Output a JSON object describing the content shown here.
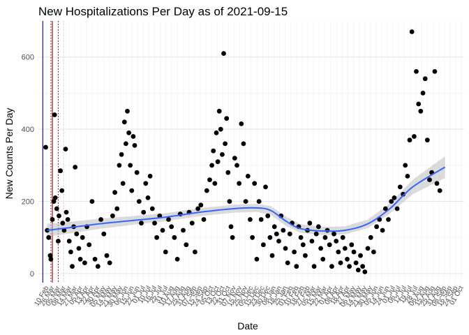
{
  "chart_data": {
    "type": "scatter",
    "title": "New Hospitalizations Per Day as of 2021-09-15",
    "xlabel": "Date",
    "ylabel": "New Counts Per Day",
    "ylim": [
      -25,
      700
    ],
    "yticks": [
      0,
      200,
      400,
      600
    ],
    "xlim": [
      "2020-03-10",
      "2021-10-10"
    ],
    "xtick_labels": [
      "10 Feb",
      "26 Mar",
      "05 Mar",
      "08 Mar",
      "14 Mar",
      "27 Mar",
      "05 Apr",
      "13 Apr",
      "22 Apr",
      "30 Apr",
      "05 May",
      "14 May",
      "21 May",
      "30 May",
      "06 Jun",
      "15 Jun",
      "22 Jun",
      "01 Jul",
      "10 Jul",
      "16 Jul",
      "25 Jul",
      "31 Jul",
      "10 Aug",
      "17 Aug",
      "25 Aug",
      "31 Aug",
      "07 Sep",
      "15 Sep",
      "24 Sep",
      "05 Oct",
      "13 Oct",
      "22 Oct",
      "31 Oct",
      "07 Nov",
      "15 Nov",
      "25 Nov",
      "05 Dec",
      "15 Dec",
      "23 Dec",
      "30 Dec",
      "08 Jan",
      "18 Jan",
      "25 Jan",
      "01 Feb",
      "10 Feb",
      "18 Feb",
      "27 Feb",
      "05 Mar",
      "15 Mar",
      "22 Mar",
      "01 Apr",
      "08 Apr",
      "18 Apr",
      "27 Apr",
      "06 May",
      "14 May",
      "21 May",
      "30 May",
      "05 Jun",
      "14 Jun",
      "24 Jun",
      "01 Jul",
      "06 Jul",
      "12 Jul",
      "19 Jul",
      "28 Jul",
      "06 Aug",
      "15 Aug",
      "25 Aug",
      "31 Aug",
      "08 Sep",
      "16 Sep",
      "24 Sep",
      "01 Oct"
    ],
    "grid": true,
    "reference_lines": [
      {
        "date": "2020-03-16",
        "color": "#00008b",
        "style": "solid"
      },
      {
        "date": "2020-03-29",
        "color": "#8b0000",
        "style": "solid"
      },
      {
        "date": "2020-03-27",
        "color": "#8b0000",
        "style": "dotted"
      },
      {
        "date": "2020-04-06",
        "color": "#8b0000",
        "style": "dotted"
      },
      {
        "date": "2020-04-13",
        "color": "#ffb6c1",
        "style": "dotted"
      }
    ],
    "trend_color": "#3366ff",
    "band_color": "#bdbdbd",
    "point_color": "#000000",
    "trend": [
      [
        "2020-03-22",
        120
      ],
      [
        "2020-04-20",
        127
      ],
      [
        "2020-06-01",
        138
      ],
      [
        "2020-07-15",
        147
      ],
      [
        "2020-09-01",
        157
      ],
      [
        "2020-10-15",
        170
      ],
      [
        "2020-12-01",
        180
      ],
      [
        "2021-01-01",
        182
      ],
      [
        "2021-01-20",
        175
      ],
      [
        "2021-02-10",
        145
      ],
      [
        "2021-03-01",
        125
      ],
      [
        "2021-04-01",
        118
      ],
      [
        "2021-05-01",
        120
      ],
      [
        "2021-06-01",
        138
      ],
      [
        "2021-07-01",
        180
      ],
      [
        "2021-08-01",
        240
      ],
      [
        "2021-09-14",
        295
      ]
    ],
    "band_halfwidth": [
      [
        0,
        18
      ],
      [
        1,
        16
      ],
      [
        2,
        14
      ],
      [
        3,
        12
      ],
      [
        4,
        11
      ],
      [
        5,
        11
      ],
      [
        6,
        11
      ],
      [
        7,
        11
      ],
      [
        8,
        12
      ],
      [
        9,
        13
      ],
      [
        10,
        12
      ],
      [
        11,
        11
      ],
      [
        12,
        11
      ],
      [
        13,
        12
      ],
      [
        14,
        14
      ],
      [
        15,
        20
      ],
      [
        16,
        30
      ]
    ],
    "series": [
      {
        "points": [
          [
            "2020-03-20",
            350
          ],
          [
            "2020-03-22",
            120
          ],
          [
            "2020-03-24",
            100
          ],
          [
            "2020-03-26",
            50
          ],
          [
            "2020-03-27",
            40
          ],
          [
            "2020-03-29",
            150
          ],
          [
            "2020-03-31",
            200
          ],
          [
            "2020-04-01",
            440
          ],
          [
            "2020-04-02",
            210
          ],
          [
            "2020-04-04",
            180
          ],
          [
            "2020-04-06",
            90
          ],
          [
            "2020-04-07",
            160
          ],
          [
            "2020-04-09",
            285
          ],
          [
            "2020-04-11",
            230
          ],
          [
            "2020-04-12",
            140
          ],
          [
            "2020-04-14",
            120
          ],
          [
            "2020-04-16",
            345
          ],
          [
            "2020-04-17",
            170
          ],
          [
            "2020-04-19",
            150
          ],
          [
            "2020-04-21",
            90
          ],
          [
            "2020-04-23",
            60
          ],
          [
            "2020-04-25",
            20
          ],
          [
            "2020-04-27",
            130
          ],
          [
            "2020-04-29",
            295
          ],
          [
            "2020-05-01",
            110
          ],
          [
            "2020-05-04",
            70
          ],
          [
            "2020-05-06",
            40
          ],
          [
            "2020-05-09",
            100
          ],
          [
            "2020-05-12",
            30
          ],
          [
            "2020-05-15",
            130
          ],
          [
            "2020-05-18",
            80
          ],
          [
            "2020-05-22",
            200
          ],
          [
            "2020-05-26",
            40
          ],
          [
            "2020-05-30",
            20
          ],
          [
            "2020-06-03",
            150
          ],
          [
            "2020-06-07",
            110
          ],
          [
            "2020-06-11",
            50
          ],
          [
            "2020-06-15",
            30
          ],
          [
            "2020-06-19",
            160
          ],
          [
            "2020-06-22",
            225
          ],
          [
            "2020-06-25",
            180
          ],
          [
            "2020-06-28",
            300
          ],
          [
            "2020-07-01",
            330
          ],
          [
            "2020-07-03",
            250
          ],
          [
            "2020-07-05",
            420
          ],
          [
            "2020-07-07",
            360
          ],
          [
            "2020-07-09",
            450
          ],
          [
            "2020-07-11",
            390
          ],
          [
            "2020-07-13",
            300
          ],
          [
            "2020-07-15",
            230
          ],
          [
            "2020-07-17",
            380
          ],
          [
            "2020-07-19",
            355
          ],
          [
            "2020-07-22",
            280
          ],
          [
            "2020-07-25",
            200
          ],
          [
            "2020-07-28",
            140
          ],
          [
            "2020-07-31",
            170
          ],
          [
            "2020-08-03",
            250
          ],
          [
            "2020-08-06",
            210
          ],
          [
            "2020-08-09",
            270
          ],
          [
            "2020-08-12",
            180
          ],
          [
            "2020-08-15",
            140
          ],
          [
            "2020-08-18",
            100
          ],
          [
            "2020-08-22",
            160
          ],
          [
            "2020-08-26",
            120
          ],
          [
            "2020-08-30",
            60
          ],
          [
            "2020-09-03",
            150
          ],
          [
            "2020-09-07",
            130
          ],
          [
            "2020-09-11",
            100
          ],
          [
            "2020-09-15",
            40
          ],
          [
            "2020-09-19",
            165
          ],
          [
            "2020-09-23",
            120
          ],
          [
            "2020-09-27",
            80
          ],
          [
            "2020-10-01",
            170
          ],
          [
            "2020-10-05",
            140
          ],
          [
            "2020-10-09",
            60
          ],
          [
            "2020-10-13",
            180
          ],
          [
            "2020-10-17",
            190
          ],
          [
            "2020-10-21",
            150
          ],
          [
            "2020-10-25",
            230
          ],
          [
            "2020-10-29",
            260
          ],
          [
            "2020-11-01",
            300
          ],
          [
            "2020-11-03",
            340
          ],
          [
            "2020-11-05",
            250
          ],
          [
            "2020-11-07",
            390
          ],
          [
            "2020-11-09",
            310
          ],
          [
            "2020-11-11",
            450
          ],
          [
            "2020-11-13",
            400
          ],
          [
            "2020-11-15",
            330
          ],
          [
            "2020-11-17",
            610
          ],
          [
            "2020-11-19",
            360
          ],
          [
            "2020-11-21",
            430
          ],
          [
            "2020-11-23",
            280
          ],
          [
            "2020-11-25",
            200
          ],
          [
            "2020-11-27",
            130
          ],
          [
            "2020-11-29",
            100
          ],
          [
            "2020-12-02",
            320
          ],
          [
            "2020-12-05",
            300
          ],
          [
            "2020-12-08",
            250
          ],
          [
            "2020-12-11",
            415
          ],
          [
            "2020-12-14",
            360
          ],
          [
            "2020-12-17",
            200
          ],
          [
            "2020-12-20",
            270
          ],
          [
            "2020-12-23",
            150
          ],
          [
            "2020-12-26",
            100
          ],
          [
            "2020-12-29",
            250
          ],
          [
            "2021-01-01",
            40
          ],
          [
            "2021-01-04",
            200
          ],
          [
            "2021-01-07",
            150
          ],
          [
            "2021-01-10",
            80
          ],
          [
            "2021-01-13",
            240
          ],
          [
            "2021-01-16",
            160
          ],
          [
            "2021-01-19",
            100
          ],
          [
            "2021-01-22",
            50
          ],
          [
            "2021-01-25",
            130
          ],
          [
            "2021-01-28",
            110
          ],
          [
            "2021-01-31",
            90
          ],
          [
            "2021-02-03",
            160
          ],
          [
            "2021-02-06",
            120
          ],
          [
            "2021-02-09",
            70
          ],
          [
            "2021-02-12",
            30
          ],
          [
            "2021-02-15",
            110
          ],
          [
            "2021-02-18",
            140
          ],
          [
            "2021-02-21",
            60
          ],
          [
            "2021-02-24",
            20
          ],
          [
            "2021-02-27",
            130
          ],
          [
            "2021-03-02",
            100
          ],
          [
            "2021-03-05",
            80
          ],
          [
            "2021-03-08",
            50
          ],
          [
            "2021-03-11",
            120
          ],
          [
            "2021-03-14",
            140
          ],
          [
            "2021-03-17",
            90
          ],
          [
            "2021-03-20",
            20
          ],
          [
            "2021-03-23",
            110
          ],
          [
            "2021-03-26",
            130
          ],
          [
            "2021-03-29",
            70
          ],
          [
            "2021-04-01",
            40
          ],
          [
            "2021-04-04",
            100
          ],
          [
            "2021-04-07",
            120
          ],
          [
            "2021-04-10",
            80
          ],
          [
            "2021-04-13",
            20
          ],
          [
            "2021-04-16",
            110
          ],
          [
            "2021-04-19",
            90
          ],
          [
            "2021-04-22",
            60
          ],
          [
            "2021-04-25",
            30
          ],
          [
            "2021-04-28",
            100
          ],
          [
            "2021-05-01",
            70
          ],
          [
            "2021-05-04",
            40
          ],
          [
            "2021-05-07",
            20
          ],
          [
            "2021-05-10",
            80
          ],
          [
            "2021-05-13",
            60
          ],
          [
            "2021-05-16",
            30
          ],
          [
            "2021-05-19",
            10
          ],
          [
            "2021-05-22",
            50
          ],
          [
            "2021-05-25",
            20
          ],
          [
            "2021-05-28",
            5
          ],
          [
            "2021-06-01",
            70
          ],
          [
            "2021-06-05",
            100
          ],
          [
            "2021-06-09",
            60
          ],
          [
            "2021-06-13",
            130
          ],
          [
            "2021-06-17",
            150
          ],
          [
            "2021-06-21",
            120
          ],
          [
            "2021-06-25",
            180
          ],
          [
            "2021-06-29",
            150
          ],
          [
            "2021-07-03",
            200
          ],
          [
            "2021-07-07",
            210
          ],
          [
            "2021-07-11",
            180
          ],
          [
            "2021-07-15",
            240
          ],
          [
            "2021-07-19",
            220
          ],
          [
            "2021-07-22",
            300
          ],
          [
            "2021-07-25",
            270
          ],
          [
            "2021-07-28",
            370
          ],
          [
            "2021-07-31",
            670
          ],
          [
            "2021-08-03",
            380
          ],
          [
            "2021-08-06",
            560
          ],
          [
            "2021-08-09",
            470
          ],
          [
            "2021-08-12",
            450
          ],
          [
            "2021-08-15",
            500
          ],
          [
            "2021-08-18",
            540
          ],
          [
            "2021-08-21",
            370
          ],
          [
            "2021-08-24",
            260
          ],
          [
            "2021-08-27",
            280
          ],
          [
            "2021-08-31",
            560
          ],
          [
            "2021-09-03",
            250
          ],
          [
            "2021-09-07",
            230
          ]
        ]
      }
    ]
  }
}
